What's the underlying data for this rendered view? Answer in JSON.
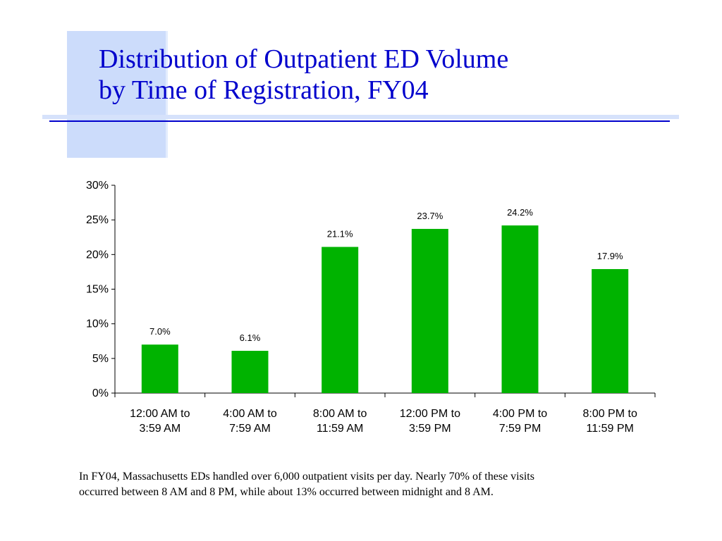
{
  "slide": {
    "title_lines": [
      "Distribution of Outpatient ED Volume",
      "by Time of Registration, FY04"
    ],
    "caption_lines": [
      "In FY04, Massachusetts EDs handled over 6,000 outpatient visits per day. Nearly 70% of these visits",
      "occurred between 8 AM and 8 PM, while about 13% occurred between midnight and 8 AM."
    ]
  },
  "colors": {
    "title": "#0000cc",
    "accent_block": "#ccdcfb",
    "bar": "#00b300"
  },
  "chart_data": {
    "type": "bar",
    "categories": [
      [
        "12:00 AM to",
        "3:59 AM"
      ],
      [
        "4:00 AM to",
        "7:59 AM"
      ],
      [
        "8:00 AM to",
        "11:59 AM"
      ],
      [
        "12:00 PM to",
        "3:59 PM"
      ],
      [
        "4:00 PM to",
        "7:59 PM"
      ],
      [
        "8:00 PM to",
        "11:59 PM"
      ]
    ],
    "values": [
      7.0,
      6.1,
      21.1,
      23.7,
      24.2,
      17.9
    ],
    "value_labels": [
      "7.0%",
      "6.1%",
      "21.1%",
      "23.7%",
      "24.2%",
      "17.9%"
    ],
    "ylim": [
      0,
      30
    ],
    "yticks": [
      0,
      5,
      10,
      15,
      20,
      25,
      30
    ],
    "ytick_labels": [
      "0%",
      "5%",
      "10%",
      "15%",
      "20%",
      "25%",
      "30%"
    ],
    "grid": false,
    "legend": "none"
  }
}
